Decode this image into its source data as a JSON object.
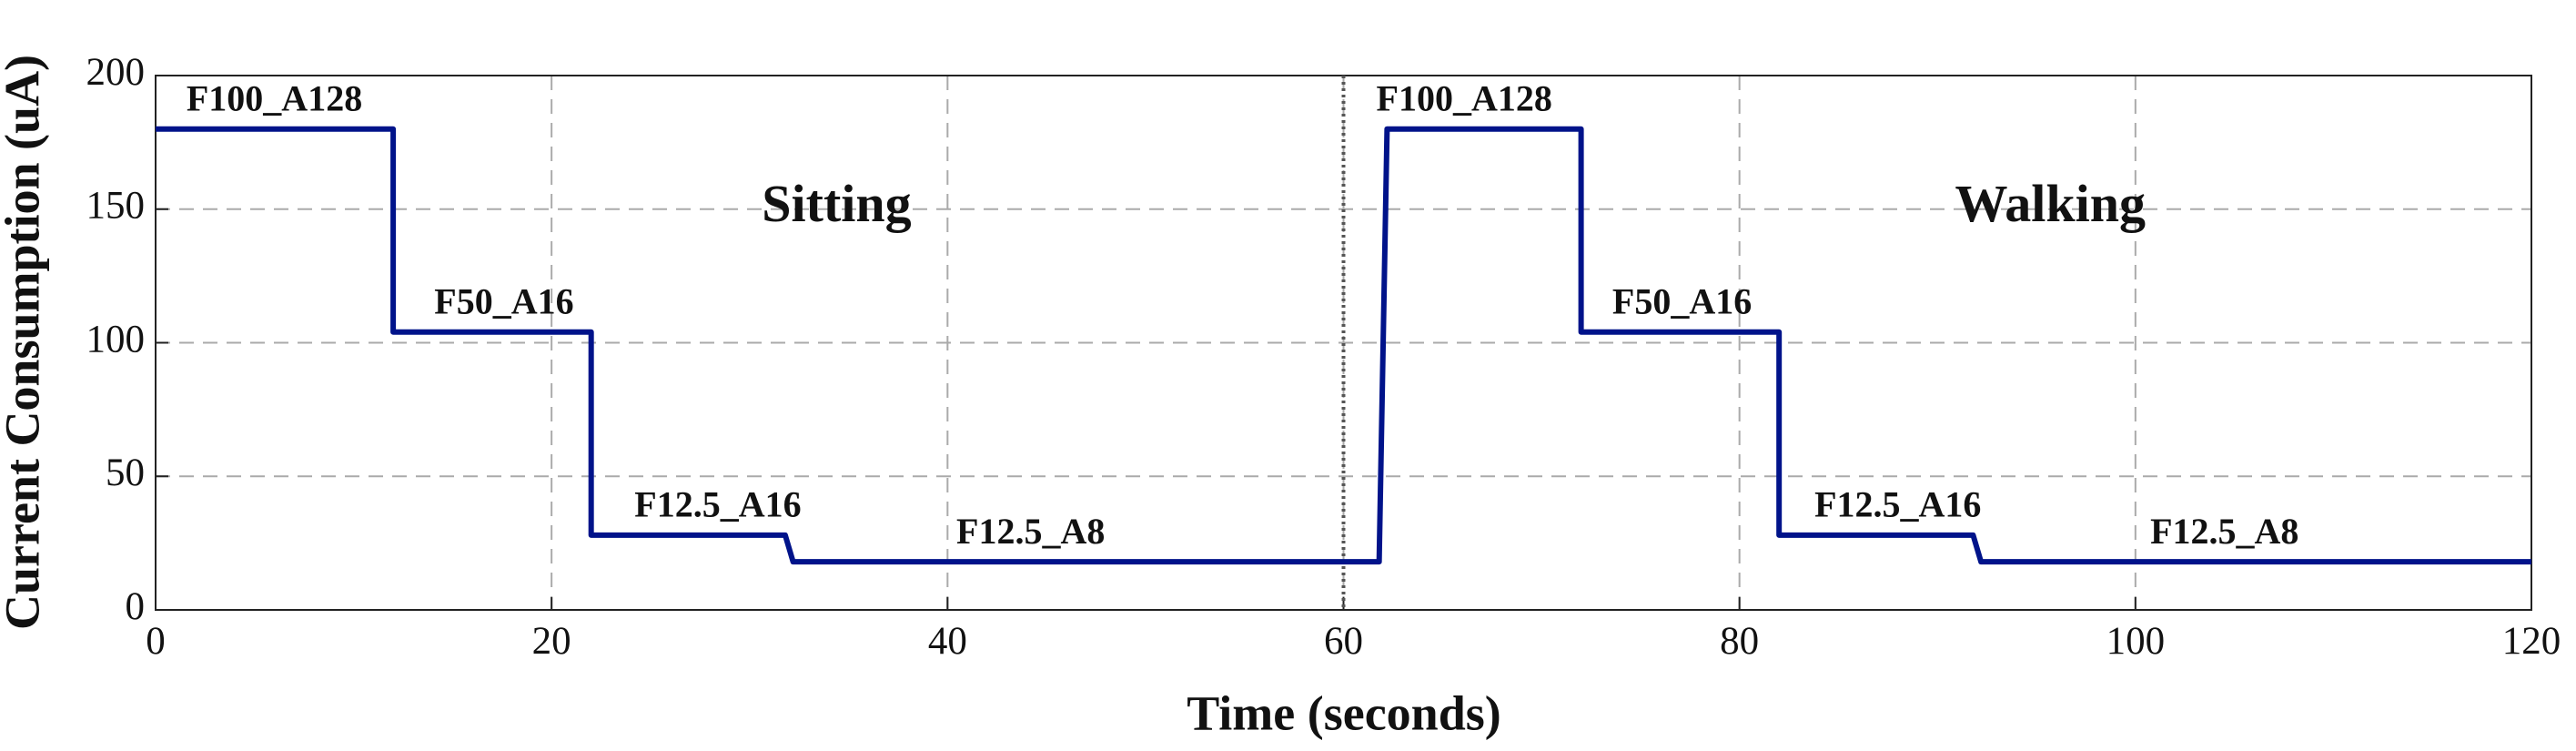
{
  "chart_data": {
    "type": "line",
    "xlabel": "Time (seconds)",
    "ylabel": "Current Consumption (uA)",
    "xlim": [
      0,
      120
    ],
    "xticks": [
      0,
      20,
      40,
      60,
      80,
      100,
      120
    ],
    "ylim": [
      0,
      200
    ],
    "yticks": [
      0,
      50,
      100,
      150,
      200
    ],
    "grid": true,
    "vline": 60,
    "series": [
      {
        "color": "#00138a",
        "x": [
          0,
          12,
          12,
          22,
          22,
          31.8,
          32.2,
          61.8,
          62.2,
          72,
          72,
          82,
          82,
          91.8,
          92.2,
          120
        ],
        "values": [
          180,
          180,
          104,
          104,
          28,
          28,
          18,
          18,
          180,
          180,
          104,
          104,
          28,
          28,
          18,
          18
        ]
      }
    ],
    "annotations": [
      "F100_A128",
      "F50_A16",
      "F12.5_A16",
      "F12.5_A8",
      "Sitting",
      "F100_A128",
      "F50_A16",
      "F12.5_A16",
      "F12.5_A8",
      "Walking"
    ]
  }
}
